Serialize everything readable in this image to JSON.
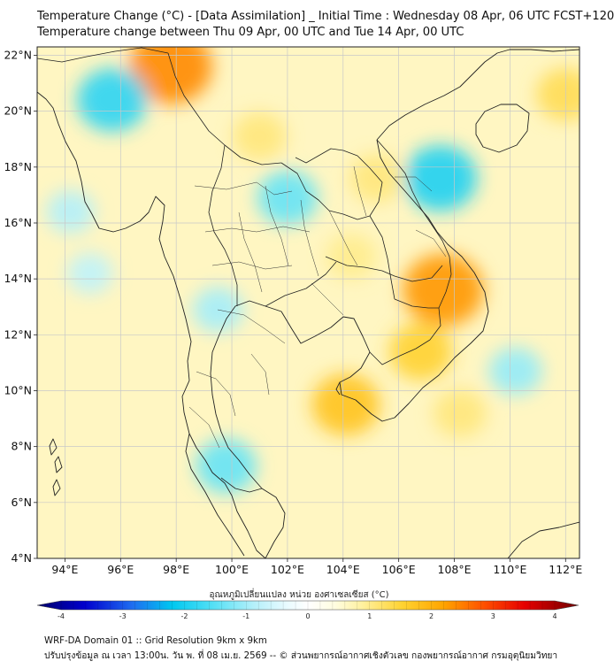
{
  "header": {
    "title": "Temperature Change (°C) - [Data Assimilation] _ Initial Time : Wednesday 08 Apr, 06 UTC FCST+120",
    "subtitle": "Temperature change between Thu 09 Apr, 00 UTC and Tue 14 Apr, 00 UTC"
  },
  "map": {
    "lon_range": [
      93,
      112.5
    ],
    "lat_range": [
      4,
      22.3
    ],
    "lon_ticks": [
      "94°E",
      "96°E",
      "98°E",
      "100°E",
      "102°E",
      "104°E",
      "106°E",
      "108°E",
      "110°E",
      "112°E"
    ],
    "lat_ticks": [
      "4°N",
      "6°N",
      "8°N",
      "10°N",
      "12°N",
      "14°N",
      "16°N",
      "18°N",
      "20°N",
      "22°N"
    ],
    "background_color": "#fff6c2",
    "anomalies": [
      {
        "lon": 97.8,
        "lat": 21.6,
        "value": 2.2
      },
      {
        "lon": 95.7,
        "lat": 20.4,
        "value": -1.7
      },
      {
        "lon": 107.5,
        "lat": 17.6,
        "value": -1.8
      },
      {
        "lon": 102.0,
        "lat": 16.9,
        "value": -1.3
      },
      {
        "lon": 107.6,
        "lat": 13.6,
        "value": 2.1
      },
      {
        "lon": 104.1,
        "lat": 9.5,
        "value": 1.6
      },
      {
        "lon": 99.5,
        "lat": 12.9,
        "value": -0.9
      },
      {
        "lon": 110.2,
        "lat": 10.7,
        "value": -1.0
      },
      {
        "lon": 99.8,
        "lat": 7.3,
        "value": -1.3
      },
      {
        "lon": 94.9,
        "lat": 14.2,
        "value": -0.7
      },
      {
        "lon": 101.0,
        "lat": 19.1,
        "value": 1.0
      },
      {
        "lon": 106.8,
        "lat": 11.4,
        "value": 1.4
      },
      {
        "lon": 108.2,
        "lat": 9.2,
        "value": 1.0
      },
      {
        "lon": 112.0,
        "lat": 20.6,
        "value": 1.2
      },
      {
        "lon": 105.2,
        "lat": 17.6,
        "value": 1.0
      },
      {
        "lon": 104.3,
        "lat": 14.8,
        "value": 0.9
      },
      {
        "lon": 94.2,
        "lat": 16.4,
        "value": -0.8
      }
    ]
  },
  "colorbar": {
    "label": "อุณหภูมิเปลี่ยนแปลง หน่วย องศาเซลเซียส (°C)",
    "min": -4,
    "max": 4,
    "ticks": [
      -4,
      -3,
      -2,
      -1,
      0,
      1,
      2,
      3,
      4
    ],
    "tick_labels": [
      "-4",
      "-3",
      "-2",
      "-1",
      "0",
      "1",
      "2",
      "3",
      "4"
    ],
    "stops": [
      {
        "v": -4.0,
        "c": "#00006a"
      },
      {
        "v": -3.3,
        "c": "#0000cd"
      },
      {
        "v": -2.6,
        "c": "#1e6cf0"
      },
      {
        "v": -2.0,
        "c": "#00c8f0"
      },
      {
        "v": -1.4,
        "c": "#55e0f5"
      },
      {
        "v": -0.8,
        "c": "#b4f0fa"
      },
      {
        "v": -0.3,
        "c": "#eafbff"
      },
      {
        "v": 0.0,
        "c": "#ffffff"
      },
      {
        "v": 0.4,
        "c": "#fffde0"
      },
      {
        "v": 0.8,
        "c": "#fff1a0"
      },
      {
        "v": 1.4,
        "c": "#ffd230"
      },
      {
        "v": 2.0,
        "c": "#ffa500"
      },
      {
        "v": 2.6,
        "c": "#ff5000"
      },
      {
        "v": 3.2,
        "c": "#e60000"
      },
      {
        "v": 4.0,
        "c": "#700000"
      }
    ]
  },
  "footer": {
    "line1": "WRF-DA Domain 01 :: Grid Resolution 9km x 9km",
    "line2": "ปรับปรุงข้อมูล ณ เวลา 13:00น. วัน พ. ที่ 08 เม.ย. 2569 -- © ส่วนพยากรณ์อากาศเชิงตัวเลข กองพยากรณ์อากาศ กรมอุตุนิยมวิทยา"
  }
}
